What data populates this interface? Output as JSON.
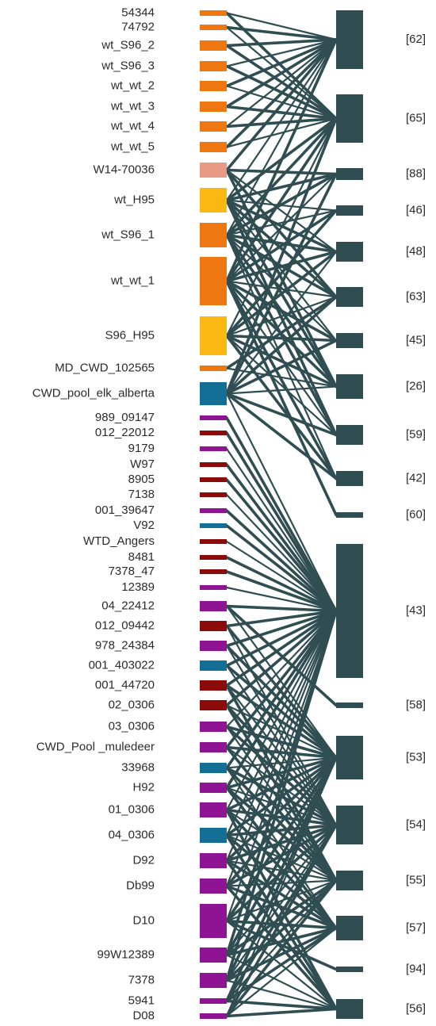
{
  "colors": {
    "orange": "#ee7711",
    "salmon": "#e89a84",
    "yellow": "#fbb714",
    "blue": "#146f96",
    "purple": "#8e1494",
    "darkred": "#8b0b0b",
    "cluster": "#304e52",
    "link": "#304e52"
  },
  "nodes": [
    {
      "label": "54344",
      "color": "orange"
    },
    {
      "label": "74792",
      "color": "orange"
    },
    {
      "label": "wt_S96_2",
      "color": "orange"
    },
    {
      "label": "wt_S96_3",
      "color": "orange"
    },
    {
      "label": "wt_wt_2",
      "color": "orange"
    },
    {
      "label": "wt_wt_3",
      "color": "orange"
    },
    {
      "label": "wt_wt_4",
      "color": "orange"
    },
    {
      "label": "wt_wt_5",
      "color": "orange"
    },
    {
      "label": "W14-70036",
      "color": "salmon"
    },
    {
      "label": "wt_H95",
      "color": "yellow"
    },
    {
      "label": "wt_S96_1",
      "color": "orange"
    },
    {
      "label": "wt_wt_1",
      "color": "orange"
    },
    {
      "label": "S96_H95",
      "color": "yellow"
    },
    {
      "label": "MD_CWD_102565",
      "color": "orange"
    },
    {
      "label": "CWD_pool_elk_alberta",
      "color": "blue"
    },
    {
      "label": "989_09147",
      "color": "purple"
    },
    {
      "label": "012_22012",
      "color": "darkred"
    },
    {
      "label": "9179",
      "color": "purple"
    },
    {
      "label": "W97",
      "color": "darkred"
    },
    {
      "label": "8905",
      "color": "darkred"
    },
    {
      "label": "7138",
      "color": "darkred"
    },
    {
      "label": "001_39647",
      "color": "purple"
    },
    {
      "label": "V92",
      "color": "blue"
    },
    {
      "label": "WTD_Angers",
      "color": "darkred"
    },
    {
      "label": "8481",
      "color": "darkred"
    },
    {
      "label": "7378_47",
      "color": "darkred"
    },
    {
      "label": "12389",
      "color": "purple"
    },
    {
      "label": "04_22412",
      "color": "purple"
    },
    {
      "label": "012_09442",
      "color": "darkred"
    },
    {
      "label": "978_24384",
      "color": "purple"
    },
    {
      "label": "001_403022",
      "color": "blue"
    },
    {
      "label": "001_44720",
      "color": "darkred"
    },
    {
      "label": "02_0306",
      "color": "darkred"
    },
    {
      "label": "03_0306",
      "color": "purple"
    },
    {
      "label": "CWD_Pool _muledeer",
      "color": "purple"
    },
    {
      "label": "33968",
      "color": "blue"
    },
    {
      "label": "H92",
      "color": "purple"
    },
    {
      "label": "01_0306",
      "color": "purple"
    },
    {
      "label": "04_0306",
      "color": "blue"
    },
    {
      "label": "D92",
      "color": "purple"
    },
    {
      "label": "Db99",
      "color": "purple"
    },
    {
      "label": "D10",
      "color": "purple"
    },
    {
      "label": "99W12389",
      "color": "purple"
    },
    {
      "label": "7378",
      "color": "purple"
    },
    {
      "label": "5941",
      "color": "purple"
    },
    {
      "label": "D08",
      "color": "purple"
    }
  ],
  "clusters": [
    {
      "label": "[62]"
    },
    {
      "label": "[65]"
    },
    {
      "label": "[88]"
    },
    {
      "label": "[46]"
    },
    {
      "label": "[48]"
    },
    {
      "label": "[63]"
    },
    {
      "label": "[45]"
    },
    {
      "label": "[26]"
    },
    {
      "label": "[59]"
    },
    {
      "label": "[42]"
    },
    {
      "label": "[60]"
    },
    {
      "label": "[43]"
    },
    {
      "label": "[58]"
    },
    {
      "label": "[53]"
    },
    {
      "label": "[54]"
    },
    {
      "label": "[55]"
    },
    {
      "label": "[57]"
    },
    {
      "label": "[94]"
    },
    {
      "label": "[56]"
    }
  ],
  "links": [
    [
      0,
      0
    ],
    [
      0,
      1
    ],
    [
      1,
      0
    ],
    [
      1,
      1
    ],
    [
      2,
      0
    ],
    [
      2,
      1
    ],
    [
      3,
      0
    ],
    [
      3,
      1
    ],
    [
      4,
      0
    ],
    [
      4,
      1
    ],
    [
      5,
      0
    ],
    [
      5,
      1
    ],
    [
      6,
      0
    ],
    [
      6,
      1
    ],
    [
      7,
      0
    ],
    [
      7,
      1
    ],
    [
      8,
      0
    ],
    [
      8,
      2
    ],
    [
      8,
      4
    ],
    [
      8,
      5
    ],
    [
      8,
      7
    ],
    [
      9,
      0
    ],
    [
      9,
      1
    ],
    [
      9,
      2
    ],
    [
      9,
      3
    ],
    [
      9,
      4
    ],
    [
      9,
      5
    ],
    [
      9,
      6
    ],
    [
      9,
      7
    ],
    [
      9,
      8
    ],
    [
      10,
      0
    ],
    [
      10,
      1
    ],
    [
      10,
      2
    ],
    [
      10,
      3
    ],
    [
      10,
      4
    ],
    [
      10,
      5
    ],
    [
      10,
      6
    ],
    [
      10,
      7
    ],
    [
      10,
      8
    ],
    [
      10,
      9
    ],
    [
      11,
      0
    ],
    [
      11,
      1
    ],
    [
      11,
      2
    ],
    [
      11,
      3
    ],
    [
      11,
      4
    ],
    [
      11,
      5
    ],
    [
      11,
      6
    ],
    [
      11,
      7
    ],
    [
      11,
      8
    ],
    [
      11,
      9
    ],
    [
      11,
      10
    ],
    [
      12,
      1
    ],
    [
      12,
      3
    ],
    [
      12,
      4
    ],
    [
      12,
      5
    ],
    [
      12,
      6
    ],
    [
      12,
      7
    ],
    [
      12,
      8
    ],
    [
      12,
      9
    ],
    [
      13,
      5
    ],
    [
      13,
      7
    ],
    [
      14,
      1
    ],
    [
      14,
      2
    ],
    [
      14,
      4
    ],
    [
      14,
      5
    ],
    [
      14,
      6
    ],
    [
      14,
      7
    ],
    [
      14,
      8
    ],
    [
      14,
      9
    ],
    [
      14,
      11
    ],
    [
      15,
      11
    ],
    [
      16,
      11
    ],
    [
      17,
      11
    ],
    [
      18,
      11
    ],
    [
      19,
      11
    ],
    [
      20,
      11
    ],
    [
      21,
      11
    ],
    [
      22,
      11
    ],
    [
      23,
      11
    ],
    [
      24,
      11
    ],
    [
      25,
      11
    ],
    [
      26,
      11
    ],
    [
      27,
      11
    ],
    [
      27,
      12
    ],
    [
      27,
      13
    ],
    [
      28,
      11
    ],
    [
      28,
      13
    ],
    [
      28,
      14
    ],
    [
      29,
      11
    ],
    [
      29,
      13
    ],
    [
      29,
      14
    ],
    [
      30,
      11
    ],
    [
      30,
      13
    ],
    [
      30,
      14
    ],
    [
      31,
      11
    ],
    [
      31,
      13
    ],
    [
      31,
      14
    ],
    [
      31,
      15
    ],
    [
      32,
      11
    ],
    [
      32,
      13
    ],
    [
      32,
      14
    ],
    [
      32,
      15
    ],
    [
      33,
      11
    ],
    [
      33,
      13
    ],
    [
      33,
      14
    ],
    [
      33,
      15
    ],
    [
      34,
      11
    ],
    [
      34,
      13
    ],
    [
      34,
      14
    ],
    [
      34,
      15
    ],
    [
      35,
      11
    ],
    [
      35,
      13
    ],
    [
      35,
      14
    ],
    [
      35,
      15
    ],
    [
      35,
      16
    ],
    [
      36,
      11
    ],
    [
      36,
      13
    ],
    [
      36,
      14
    ],
    [
      36,
      15
    ],
    [
      36,
      16
    ],
    [
      37,
      11
    ],
    [
      37,
      13
    ],
    [
      37,
      14
    ],
    [
      37,
      15
    ],
    [
      37,
      16
    ],
    [
      37,
      18
    ],
    [
      38,
      11
    ],
    [
      38,
      13
    ],
    [
      38,
      14
    ],
    [
      38,
      15
    ],
    [
      38,
      16
    ],
    [
      38,
      18
    ],
    [
      39,
      11
    ],
    [
      39,
      13
    ],
    [
      39,
      14
    ],
    [
      39,
      15
    ],
    [
      39,
      16
    ],
    [
      39,
      18
    ],
    [
      40,
      11
    ],
    [
      40,
      13
    ],
    [
      40,
      14
    ],
    [
      40,
      15
    ],
    [
      40,
      16
    ],
    [
      40,
      18
    ],
    [
      41,
      11
    ],
    [
      41,
      13
    ],
    [
      41,
      14
    ],
    [
      41,
      15
    ],
    [
      41,
      16
    ],
    [
      41,
      17
    ],
    [
      41,
      18
    ],
    [
      42,
      11
    ],
    [
      42,
      13
    ],
    [
      42,
      14
    ],
    [
      42,
      15
    ],
    [
      42,
      16
    ],
    [
      42,
      18
    ],
    [
      43,
      11
    ],
    [
      43,
      13
    ],
    [
      43,
      14
    ],
    [
      43,
      15
    ],
    [
      43,
      16
    ],
    [
      43,
      18
    ],
    [
      44,
      13
    ],
    [
      44,
      14
    ],
    [
      44,
      15
    ],
    [
      44,
      16
    ],
    [
      44,
      18
    ],
    [
      45,
      13
    ],
    [
      45,
      14
    ],
    [
      45,
      15
    ],
    [
      45,
      16
    ],
    [
      45,
      18
    ]
  ]
}
